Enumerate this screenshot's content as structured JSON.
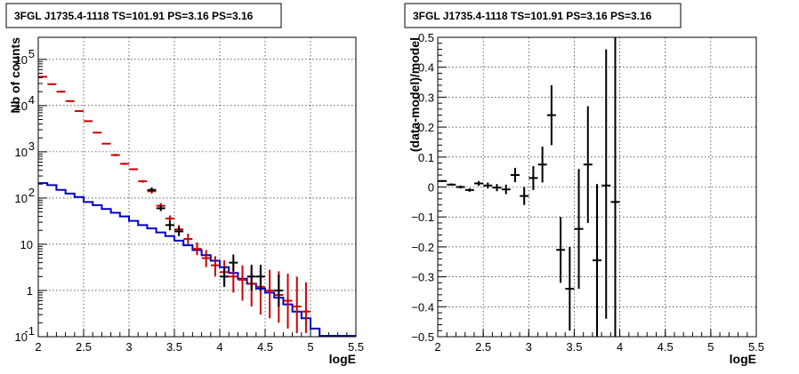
{
  "chart_data": [
    {
      "type": "line",
      "title": "3FGL J1735.4-1118 TS=101.91 PS=3.16 PS=3.16",
      "xlabel": "logE",
      "ylabel": "Nb of counts",
      "xlim": [
        2,
        5.5
      ],
      "ylim": [
        0.1,
        300000
      ],
      "yscale": "log",
      "grid": true,
      "x_ticks": [
        "2",
        "2.5",
        "3",
        "3.5",
        "4",
        "4.5",
        "5",
        "5.5"
      ],
      "y_ticks": [
        {
          "value": 0.1,
          "label": "10",
          "exp": "-1"
        },
        {
          "value": 1,
          "label": "1",
          "exp": ""
        },
        {
          "value": 10,
          "label": "10",
          "exp": ""
        },
        {
          "value": 100,
          "label": "10",
          "exp": "2"
        },
        {
          "value": 1000,
          "label": "10",
          "exp": "3"
        },
        {
          "value": 10000,
          "label": "10",
          "exp": "4"
        },
        {
          "value": 100000,
          "label": "10",
          "exp": "5"
        }
      ],
      "bin_edges": [
        2.0,
        2.1,
        2.2,
        2.3,
        2.4,
        2.5,
        2.6,
        2.7,
        2.8,
        2.9,
        3.0,
        3.1,
        3.2,
        3.3,
        3.4,
        3.5,
        3.6,
        3.7,
        3.8,
        3.9,
        4.0,
        4.1,
        4.2,
        4.3,
        4.4,
        4.5,
        4.6,
        4.7,
        4.8,
        4.9,
        5.0,
        5.1,
        5.2,
        5.3,
        5.4,
        5.5
      ],
      "series": [
        {
          "kind": "step",
          "color": "#0000cc",
          "values": [
            210,
            190,
            150,
            125,
            105,
            82,
            70,
            58,
            48,
            40,
            32,
            26,
            22,
            18,
            15,
            12,
            9.5,
            7.5,
            5.8,
            4.4,
            3.2,
            2.4,
            1.8,
            1.4,
            1.1,
            0.9,
            0.7,
            0.5,
            0.35,
            0.25,
            0.15,
            0.1,
            0.1,
            0.1,
            0.1
          ]
        },
        {
          "kind": "errorbar",
          "color": "#cc0000",
          "x": [
            2.05,
            2.15,
            2.25,
            2.35,
            2.45,
            2.55,
            2.65,
            2.75,
            2.85,
            2.95,
            3.05,
            3.15,
            3.25,
            3.35,
            3.45,
            3.55,
            3.65,
            3.75,
            3.85,
            3.95,
            4.05,
            4.15,
            4.25,
            4.35,
            4.45,
            4.55,
            4.65,
            4.75,
            4.85,
            4.95
          ],
          "y": [
            42000,
            29000,
            20000,
            12500,
            7600,
            4600,
            2600,
            1500,
            850,
            550,
            420,
            230,
            140,
            68,
            36,
            21,
            13,
            8,
            5,
            3.5,
            2.5,
            2.0,
            1.7,
            1.4,
            1.2,
            1.0,
            0.8,
            0.6,
            0.45,
            0.35
          ],
          "y_low": [
            40000,
            27500,
            19000,
            12000,
            7300,
            4400,
            2500,
            1450,
            800,
            520,
            400,
            215,
            125,
            58,
            30,
            17,
            10,
            5.8,
            3.2,
            2.0,
            1.2,
            0.9,
            0.6,
            0.45,
            0.3,
            0.25,
            0.2,
            0.15,
            0.12,
            0.12
          ],
          "y_high": [
            44000,
            30500,
            21000,
            13000,
            7900,
            4800,
            2700,
            1550,
            900,
            580,
            440,
            245,
            155,
            78,
            42,
            26,
            17,
            11,
            7.5,
            5.5,
            4.5,
            3.8,
            3.5,
            3.2,
            3.0,
            2.8,
            2.6,
            2.3,
            2.0,
            1.5
          ]
        },
        {
          "kind": "errorbar",
          "color": "#000000",
          "x": [
            3.25,
            3.35,
            3.45,
            3.55,
            4.05,
            4.15,
            4.35,
            4.45,
            4.65
          ],
          "y": [
            150,
            60,
            26,
            19,
            2,
            4,
            2,
            2,
            1
          ],
          "y_low": [
            135,
            52,
            20,
            15,
            1.2,
            2.6,
            1.0,
            1.0,
            0.45
          ],
          "y_high": [
            170,
            70,
            32,
            24,
            3.2,
            6.0,
            3.6,
            3.6,
            2.2
          ]
        }
      ]
    },
    {
      "type": "scatter",
      "title": "3FGL J1735.4-1118 TS=101.91 PS=3.16 PS=3.16",
      "xlabel": "logE",
      "ylabel": "(data-model)/model",
      "xlim": [
        2,
        5.5
      ],
      "ylim": [
        -0.5,
        0.5
      ],
      "grid": true,
      "x_ticks": [
        "2",
        "2.5",
        "3",
        "3.5",
        "4",
        "4.5",
        "5",
        "5.5"
      ],
      "y_ticks": [
        "−0.5",
        "−0.4",
        "−0.3",
        "−0.2",
        "−0.1",
        "0",
        "0.1",
        "0.2",
        "0.3",
        "0.4",
        "0.5"
      ],
      "y_tick_values": [
        -0.5,
        -0.4,
        -0.3,
        -0.2,
        -0.1,
        0,
        0.1,
        0.2,
        0.3,
        0.4,
        0.5
      ],
      "x": [
        2.05,
        2.15,
        2.25,
        2.35,
        2.45,
        2.55,
        2.65,
        2.75,
        2.85,
        2.95,
        3.05,
        3.15,
        3.25,
        3.35,
        3.45,
        3.55,
        3.65,
        3.75,
        3.85,
        3.95
      ],
      "y": [
        0.02,
        0.008,
        0.0,
        -0.01,
        0.012,
        0.005,
        -0.002,
        -0.008,
        0.04,
        -0.03,
        0.03,
        0.075,
        0.24,
        -0.21,
        -0.34,
        -0.14,
        0.075,
        -0.245,
        0.005,
        -0.05
      ],
      "y_low": [
        0.017,
        0.004,
        -0.005,
        -0.016,
        0.004,
        -0.005,
        -0.014,
        -0.024,
        0.016,
        -0.06,
        -0.01,
        0.015,
        0.14,
        -0.32,
        -0.48,
        -0.34,
        -0.12,
        -0.5,
        -0.44,
        -0.5
      ],
      "y_high": [
        0.023,
        0.012,
        0.005,
        -0.004,
        0.02,
        0.015,
        0.01,
        0.008,
        0.064,
        0.0,
        0.07,
        0.135,
        0.34,
        -0.1,
        -0.2,
        0.06,
        0.27,
        0.01,
        0.46,
        0.5
      ]
    }
  ]
}
